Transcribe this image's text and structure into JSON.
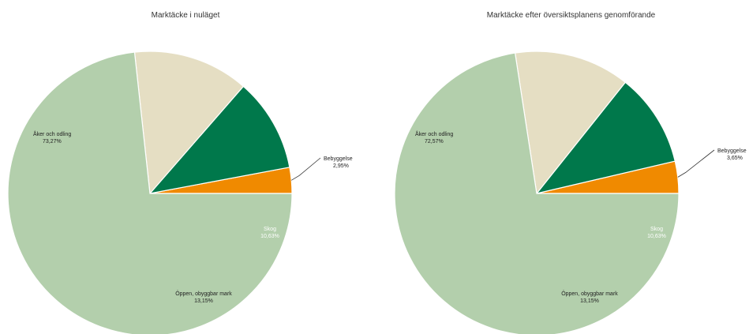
{
  "chart_data": [
    {
      "type": "pie",
      "title": "Marktäcke i nuläget",
      "slices": [
        {
          "label": "Bebyggelse",
          "value": 2.95,
          "display": "2,95%",
          "color": "#f08a00"
        },
        {
          "label": "Skog",
          "value": 10.63,
          "display": "10,63%",
          "color": "#00784b"
        },
        {
          "label": "Öppen, obyggbar mark",
          "value": 13.15,
          "display": "13,15%",
          "color": "#e5dec3"
        },
        {
          "label": "Åker och odling",
          "value": 73.27,
          "display": "73,27%",
          "color": "#b3cfac"
        }
      ]
    },
    {
      "type": "pie",
      "title": "Marktäcke efter översiktsplanens genomförande",
      "slices": [
        {
          "label": "Bebyggelse",
          "value": 3.65,
          "display": "3,65%",
          "color": "#f08a00"
        },
        {
          "label": "Skog",
          "value": 10.63,
          "display": "10,63%",
          "color": "#00784b"
        },
        {
          "label": "Öppen, obyggbar mark",
          "value": 13.15,
          "display": "13,15%",
          "color": "#e5dec3"
        },
        {
          "label": "Åker och odling",
          "value": 72.57,
          "display": "72,57%",
          "color": "#b3cfac"
        }
      ]
    }
  ]
}
